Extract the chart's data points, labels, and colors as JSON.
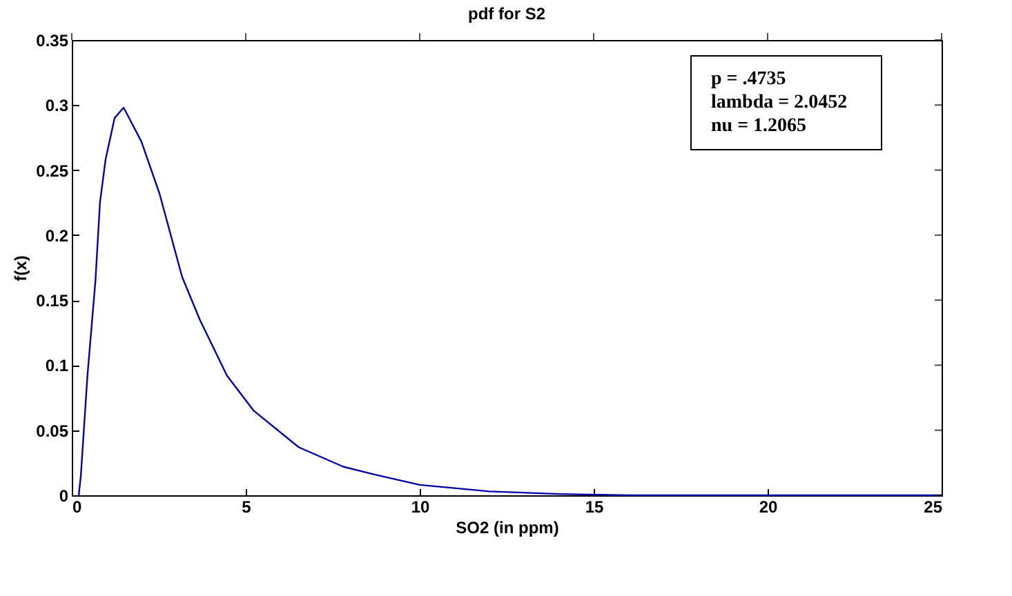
{
  "chart_data": {
    "type": "line",
    "title": "pdf for S2",
    "xlabel": "SO2 (in ppm)",
    "ylabel": "f(x)",
    "x": [
      0.2,
      0.26,
      0.45,
      0.68,
      0.81,
      0.97,
      1.23,
      1.49,
      2.0,
      2.52,
      3.17,
      3.68,
      4.46,
      5.23,
      6.52,
      7.8,
      8.7,
      10,
      12,
      14,
      16,
      20,
      25
    ],
    "series": [
      {
        "color": "#0000aa",
        "values": [
          0,
          0.015,
          0.092,
          0.165,
          0.225,
          0.258,
          0.29,
          0.298,
          0.272,
          0.232,
          0.168,
          0.135,
          0.092,
          0.065,
          0.037,
          0.022,
          0.016,
          0.008,
          0.003,
          0.001,
          0,
          0,
          0
        ]
      }
    ],
    "xlim": [
      0,
      25
    ],
    "xticks": [
      0,
      5,
      10,
      15,
      20,
      25
    ],
    "ylim": [
      0,
      0.35
    ],
    "yticks": [
      0,
      0.05,
      0.1,
      0.15,
      0.2,
      0.25,
      0.3,
      0.35
    ],
    "annotations": [
      "p = .4735",
      "lambda = 2.0452",
      "nu = 1.2065"
    ],
    "grid": false,
    "marker": "none",
    "line_style": "solid"
  }
}
